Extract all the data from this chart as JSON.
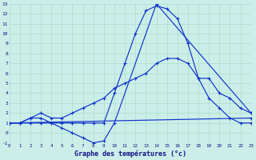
{
  "title": "Graphe des températures (°c)",
  "bg_color": "#cceee8",
  "grid_color": "#aaddcc",
  "line_color": "#1133cc",
  "xlim": [
    0,
    23
  ],
  "ylim": [
    -1,
    13
  ],
  "xticks": [
    0,
    1,
    2,
    3,
    4,
    5,
    6,
    7,
    8,
    9,
    10,
    11,
    12,
    13,
    14,
    15,
    16,
    17,
    18,
    19,
    20,
    21,
    22,
    23
  ],
  "yticks": [
    -1,
    0,
    1,
    2,
    3,
    4,
    5,
    6,
    7,
    8,
    9,
    10,
    11,
    12,
    13
  ],
  "curve1_x": [
    0,
    1,
    2,
    3,
    4,
    5,
    6,
    7,
    8,
    9,
    10,
    11,
    12,
    13,
    14,
    15,
    16,
    17,
    18,
    19,
    20,
    21,
    22,
    23
  ],
  "curve1_y": [
    1,
    1,
    1,
    1,
    1,
    1,
    1,
    1,
    1,
    1,
    4,
    7,
    10,
    12.3,
    12.8,
    12.5,
    11.5,
    9,
    5.5,
    3.5,
    2.5,
    1.5,
    1,
    1
  ],
  "curve2_x": [
    0,
    1,
    2,
    3,
    4,
    5,
    6,
    7,
    8,
    9,
    10,
    11,
    12,
    13,
    14,
    15,
    16,
    17,
    18,
    19,
    20,
    21,
    22,
    23
  ],
  "curve2_y": [
    1,
    1,
    1.5,
    2,
    1.5,
    1.5,
    2,
    2.5,
    3,
    3.5,
    4.5,
    5,
    5.5,
    6,
    7,
    7.5,
    7.5,
    7,
    5.5,
    5.5,
    4,
    3.5,
    2.5,
    2
  ],
  "line3_x": [
    0,
    23
  ],
  "line3_y": [
    1,
    1.5
  ],
  "curve4_x": [
    0,
    1,
    2,
    3,
    4,
    5,
    6,
    7,
    8,
    9,
    10,
    14,
    23
  ],
  "curve4_y": [
    1,
    1,
    1.5,
    1.5,
    1,
    0.5,
    0,
    -0.5,
    -1,
    -0.8,
    1,
    13,
    2
  ]
}
